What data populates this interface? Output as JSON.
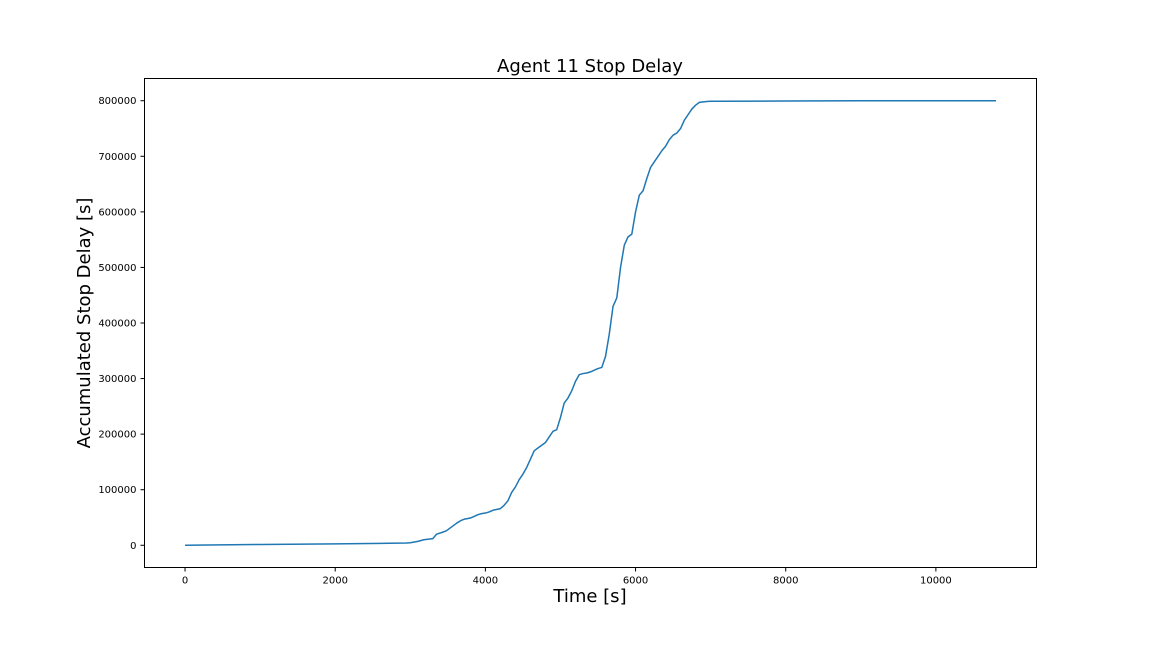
{
  "chart_data": {
    "type": "line",
    "title": "Agent 11 Stop Delay",
    "xlabel": "Time [s]",
    "ylabel": "Accumulated Stop Delay [s]",
    "xlim": [
      -540,
      11340
    ],
    "ylim": [
      -40000,
      840000
    ],
    "x_ticks": [
      0,
      2000,
      4000,
      6000,
      8000,
      10000
    ],
    "y_ticks": [
      0,
      100000,
      200000,
      300000,
      400000,
      500000,
      600000,
      700000,
      800000
    ],
    "x_tick_labels": [
      "0",
      "2000",
      "4000",
      "6000",
      "8000",
      "10000"
    ],
    "y_tick_labels": [
      "0",
      "100000",
      "200000",
      "300000",
      "400000",
      "500000",
      "600000",
      "700000",
      "800000"
    ],
    "grid": false,
    "series": [
      {
        "color": "#1f77b4",
        "x": [
          0,
          1000,
          2000,
          2950,
          3000,
          3100,
          3180,
          3300,
          3350,
          3420,
          3480,
          3550,
          3620,
          3680,
          3720,
          3760,
          3800,
          3850,
          3900,
          3950,
          4000,
          4050,
          4100,
          4200,
          4250,
          4300,
          4350,
          4400,
          4450,
          4500,
          4550,
          4600,
          4650,
          4700,
          4750,
          4800,
          4850,
          4900,
          4950,
          5000,
          5050,
          5100,
          5150,
          5200,
          5250,
          5300,
          5350,
          5400,
          5450,
          5500,
          5550,
          5600,
          5650,
          5700,
          5750,
          5800,
          5850,
          5900,
          5950,
          6000,
          6050,
          6100,
          6150,
          6200,
          6250,
          6300,
          6350,
          6400,
          6450,
          6500,
          6550,
          6600,
          6650,
          6700,
          6750,
          6800,
          6850,
          6900,
          6950,
          7000,
          7100,
          8000,
          9000,
          10000,
          10800
        ],
        "y": [
          0,
          1500,
          2500,
          4000,
          4500,
          7000,
          10000,
          12000,
          20000,
          23000,
          26000,
          33000,
          40000,
          45000,
          47000,
          48000,
          49000,
          52000,
          55000,
          57000,
          58000,
          60000,
          63000,
          66000,
          72000,
          80000,
          95000,
          105000,
          118000,
          128000,
          140000,
          155000,
          170000,
          175000,
          180000,
          185000,
          195000,
          205000,
          208000,
          230000,
          256000,
          265000,
          278000,
          295000,
          307000,
          309000,
          310000,
          312000,
          315000,
          318000,
          320000,
          340000,
          380000,
          430000,
          445000,
          500000,
          540000,
          555000,
          560000,
          600000,
          630000,
          638000,
          660000,
          680000,
          690000,
          700000,
          710000,
          718000,
          730000,
          738000,
          742000,
          750000,
          765000,
          775000,
          785000,
          792000,
          797000,
          798000,
          798500,
          799000,
          799000,
          799500,
          800000,
          800000,
          800000
        ]
      }
    ]
  }
}
